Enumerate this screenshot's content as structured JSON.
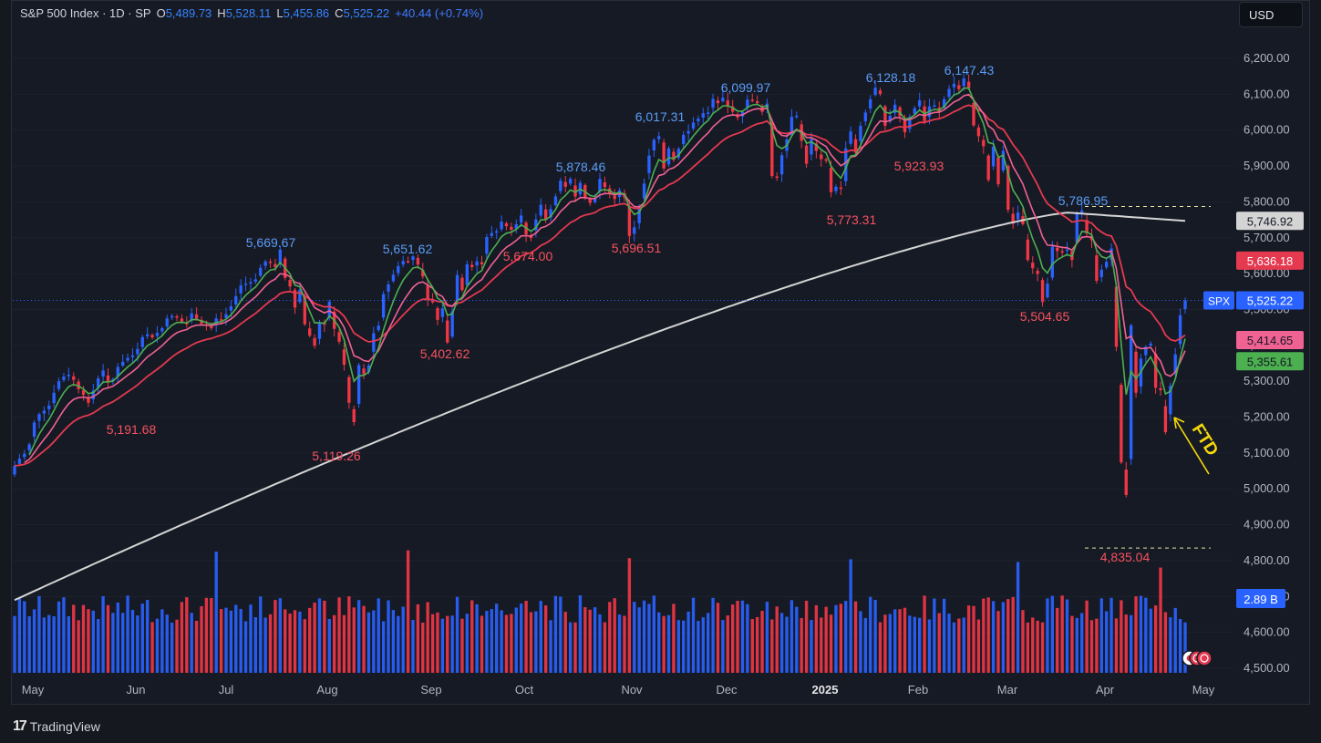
{
  "header": {
    "symbol": "S&P 500 Index · 1D · SP",
    "open_label": "O",
    "open": "5,489.73",
    "high_label": "H",
    "high": "5,528.11",
    "low_label": "L",
    "low": "5,455.86",
    "close_label": "C",
    "close": "5,525.22",
    "change": "+40.44 (+0.74%)"
  },
  "currency": "USD",
  "branding": "TradingView",
  "colors": {
    "background": "#161a25",
    "up": "#2962ff",
    "down": "#f23645",
    "ema_fast": "#4caf50",
    "ema_mid": "#f06292",
    "ema_slow": "#e53950",
    "sma_long": "#d4d4d4",
    "annotation": "#f5d90a"
  },
  "chart_data": {
    "type": "candlestick",
    "x_ticks": [
      "May",
      "Jun",
      "Jul",
      "Aug",
      "Sep",
      "Oct",
      "Nov",
      "Dec",
      "2025",
      "Feb",
      "Mar",
      "Apr",
      "May"
    ],
    "y_ticks": [
      "6,200.00",
      "6,100.00",
      "6,000.00",
      "5,900.00",
      "5,800.00",
      "5,700.00",
      "5,600.00",
      "5,500.00",
      "5,400.00",
      "5,300.00",
      "5,200.00",
      "5,100.00",
      "5,000.00",
      "4,900.00",
      "4,800.00",
      "4,700.00",
      "4,600.00",
      "4,500.00"
    ],
    "ylim": [
      4500,
      6200
    ],
    "series_closes": [
      5064,
      5084,
      5098,
      5124,
      5185,
      5208,
      5218,
      5232,
      5268,
      5300,
      5313,
      5318,
      5304,
      5278,
      5262,
      5240,
      5274,
      5308,
      5330,
      5298,
      5306,
      5340,
      5354,
      5365,
      5372,
      5390,
      5423,
      5431,
      5422,
      5435,
      5448,
      5475,
      5482,
      5479,
      5465,
      5459,
      5489,
      5474,
      5460,
      5455,
      5448,
      5475,
      5470,
      5487,
      5509,
      5537,
      5567,
      5572,
      5576,
      5584,
      5616,
      5634,
      5633,
      5618,
      5667,
      5588,
      5564,
      5505,
      5555,
      5459,
      5427,
      5399,
      5463,
      5459,
      5522,
      5446,
      5410,
      5346,
      5240,
      5186,
      5345,
      5319,
      5344,
      5434,
      5455,
      5543,
      5570,
      5597,
      5621,
      5635,
      5634,
      5648,
      5625,
      5592,
      5528,
      5520,
      5471,
      5503,
      5408,
      5495,
      5596,
      5554,
      5626,
      5618,
      5634,
      5626,
      5702,
      5713,
      5718,
      5745,
      5732,
      5722,
      5738,
      5762,
      5709,
      5699,
      5751,
      5792,
      5751,
      5780,
      5815,
      5859,
      5842,
      5864,
      5815,
      5853,
      5813,
      5797,
      5809,
      5864,
      5841,
      5823,
      5808,
      5832,
      5812,
      5705,
      5729,
      5783,
      5851,
      5929,
      5973,
      5983,
      5893,
      5949,
      5917,
      5948,
      5987,
      5997,
      6021,
      6032,
      6047,
      6049,
      6087,
      6075,
      6090,
      6069,
      6051,
      6035,
      6050,
      6085,
      6084,
      6075,
      6051,
      6074,
      5872,
      5867,
      5930,
      5974,
      6037,
      6040,
      5970,
      5906,
      5975,
      5942,
      5919,
      5918,
      5827,
      5842,
      5836,
      5949,
      5996,
      5937,
      6012,
      6049,
      6086,
      6118,
      6101,
      6012,
      6040,
      6071,
      6039,
      5994,
      6037,
      6061,
      6083,
      6025,
      6066,
      6069,
      6051,
      6086,
      6115,
      6129,
      6114,
      6144,
      6117,
      6013,
      5983,
      5955,
      5861,
      5954,
      5849,
      5942,
      5778,
      5739,
      5770,
      5738,
      5638,
      5615,
      5599,
      5521,
      5572,
      5675,
      5663,
      5662,
      5667,
      5638,
      5768,
      5776,
      5712,
      5693,
      5580,
      5611,
      5633,
      5670,
      5396,
      5074,
      4983,
      5456,
      5268,
      5363,
      5396,
      5405,
      5282,
      5275,
      5158,
      5287,
      5375,
      5484,
      5525
    ],
    "price_labels": {
      "high_1": "5,669.67",
      "high_2": "5,651.62",
      "high_3": "5,878.46",
      "high_4": "6,017.31",
      "high_5": "6,099.97",
      "high_6": "6,128.18",
      "high_7": "6,147.43",
      "high_8": "5,786.95",
      "low_1": "5,191.68",
      "low_2": "5,119.26",
      "low_3": "5,402.62",
      "low_4": "5,674.00",
      "low_5": "5,696.51",
      "low_6": "5,773.31",
      "low_7": "5,923.93",
      "low_8": "5,504.65",
      "low_9": "4,835.04"
    },
    "price_badges": [
      {
        "text": "5,746.92",
        "value": 5746.92,
        "color": "#d4d4d4",
        "text_color": "#131722"
      },
      {
        "text": "5,636.18",
        "value": 5636.18,
        "color": "#e53950",
        "text_color": "#ffffff"
      },
      {
        "text": "5,525.22",
        "value": 5525.22,
        "color": "#2962ff",
        "text_color": "#ffffff"
      },
      {
        "text": "5,414.65",
        "value": 5414.65,
        "color": "#f06292",
        "text_color": "#131722"
      },
      {
        "text": "5,355.61",
        "value": 5355.61,
        "color": "#4caf50",
        "text_color": "#131722"
      }
    ],
    "symbol_badge": "SPX",
    "volume_badge": "2.89 B",
    "annotation_text": "FTD",
    "indicator_last_values": {
      "sma_long": 5746.92,
      "ema_slow": 5636.18,
      "ema_mid": 5414.65,
      "ema_fast": 5355.61
    },
    "dashed_levels": [
      5786.95,
      4835.04
    ]
  }
}
